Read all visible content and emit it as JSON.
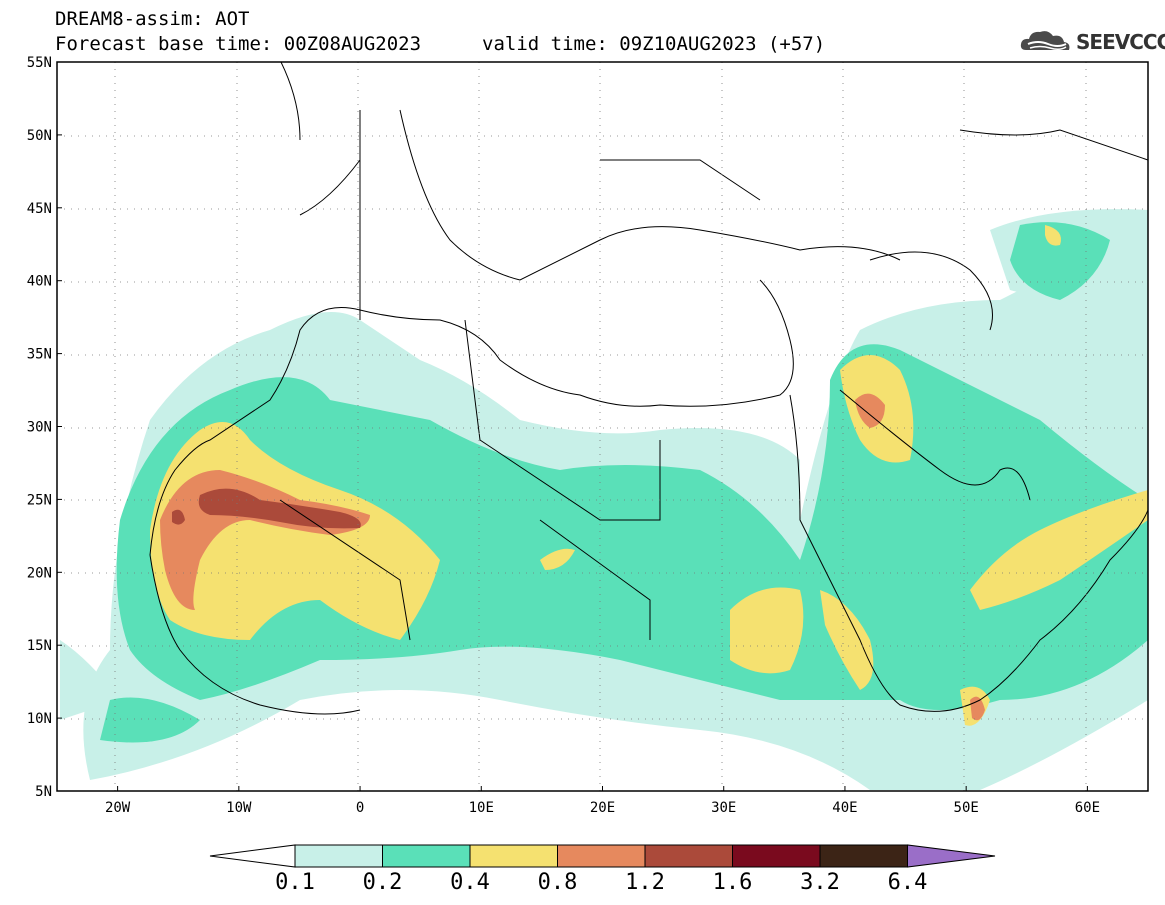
{
  "header": {
    "model_line": "DREAM8-assim: AOT",
    "base_time": "Forecast base time: 00Z08AUG2023",
    "valid_time": "valid time: 09Z10AUG2023 (+57)",
    "logo_text": "SEEVCCC"
  },
  "map": {
    "lat_labels": [
      "55N",
      "50N",
      "45N",
      "40N",
      "35N",
      "30N",
      "25N",
      "20N",
      "15N",
      "10N",
      "5N"
    ],
    "lon_labels": [
      "20W",
      "10W",
      "0",
      "10E",
      "20E",
      "30E",
      "40E",
      "50E",
      "60E"
    ],
    "lon_range": [
      -25,
      65
    ],
    "lat_range": [
      5,
      55
    ],
    "grid": "dotted"
  },
  "colorbar": {
    "labels": [
      "0.1",
      "0.2",
      "0.4",
      "0.8",
      "1.2",
      "1.6",
      "3.2",
      "6.4"
    ],
    "colors": [
      "#ffffff",
      "#c8f0e8",
      "#5ae0b8",
      "#f5e170",
      "#e6895e",
      "#ab4a3a",
      "#7a0a1e",
      "#3c2416",
      "#9a6ec8"
    ]
  }
}
